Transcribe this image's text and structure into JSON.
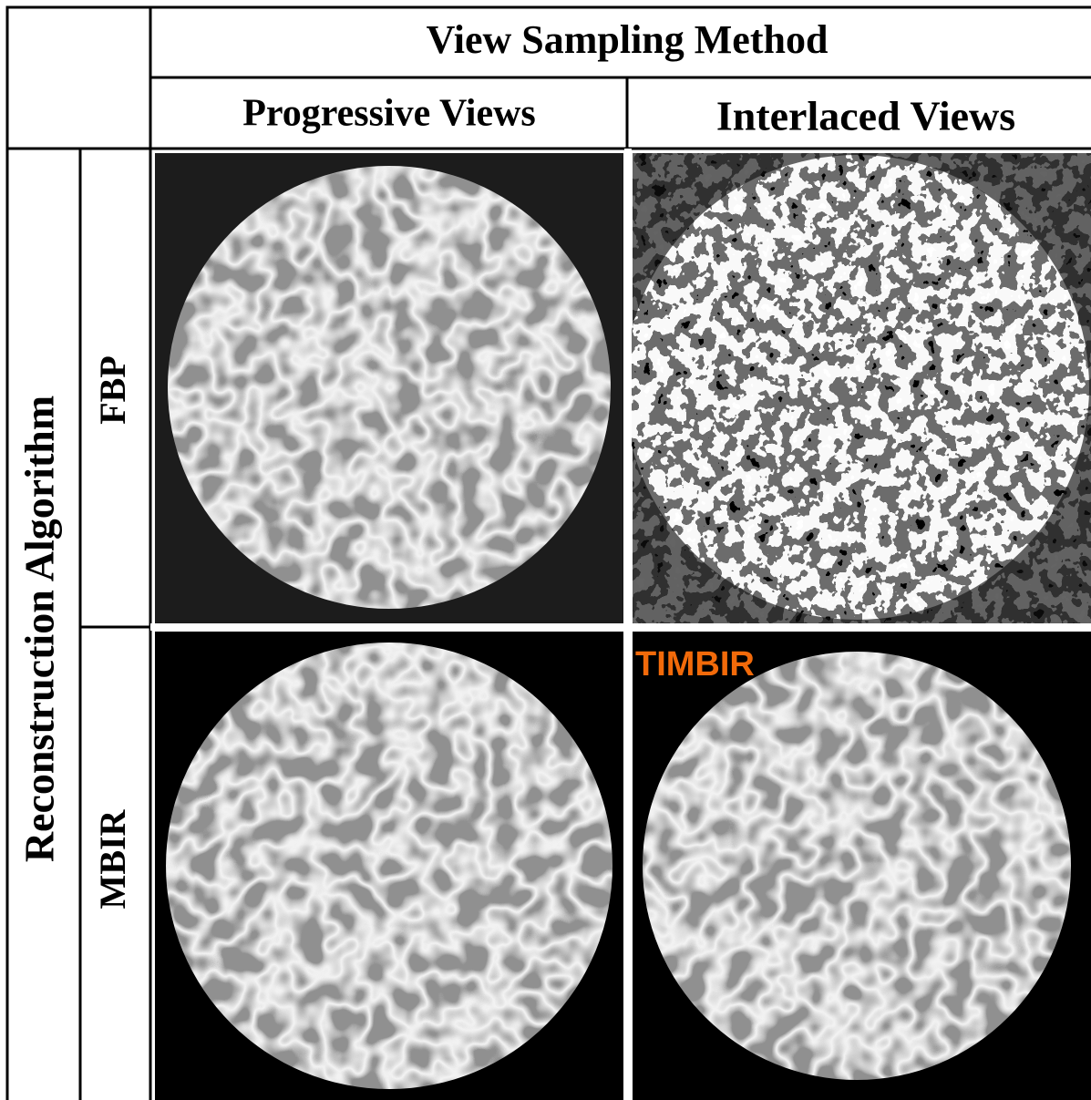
{
  "header": {
    "title": "View Sampling Method",
    "columns": [
      "Progressive Views",
      "Interlaced Views"
    ]
  },
  "rows": {
    "title": "Reconstruction Algorithm",
    "labels": [
      "FBP",
      "MBIR"
    ]
  },
  "annotation": "TIMBIR"
}
